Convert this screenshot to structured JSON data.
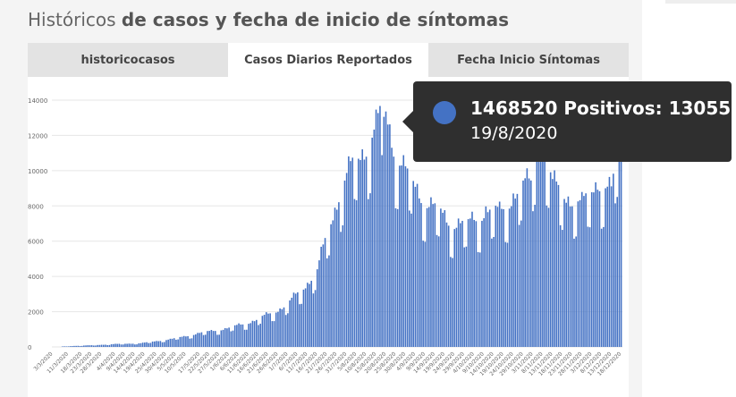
{
  "header": {
    "title_light": "Históricos ",
    "title_strong": "de casos y fecha de inicio de síntomas"
  },
  "tabs": [
    {
      "label": "historicocasos",
      "active": false
    },
    {
      "label": "Casos Diarios Reportados",
      "active": true
    },
    {
      "label": "Fecha Inicio Síntomas",
      "active": false
    }
  ],
  "tooltip": {
    "line1": "1468520 Positivos: 13055",
    "line2": "19/8/2020",
    "color": "#4472c4"
  },
  "colors": {
    "bar": "#4472c4",
    "grid": "#e6e6e6",
    "panel": "#f4f4f4",
    "tooltip_bg": "#2f2f2f"
  },
  "chart_data": {
    "type": "bar",
    "title": "",
    "xlabel": "",
    "ylabel": "",
    "ylim": [
      0,
      14000
    ],
    "yticks": [
      0,
      2000,
      4000,
      6000,
      8000,
      10000,
      12000,
      14000
    ],
    "grid": true,
    "series": [
      {
        "name": "Positivos",
        "anchors": [
          [
            "3/3/2020",
            0
          ],
          [
            "15/3/2020",
            60
          ],
          [
            "23/3/2020",
            90
          ],
          [
            "3/4/2020",
            150
          ],
          [
            "17/4/2020",
            200
          ],
          [
            "3/5/2020",
            430
          ],
          [
            "17/5/2020",
            750
          ],
          [
            "2/6/2020",
            1050
          ],
          [
            "16/6/2020",
            1500
          ],
          [
            "1/7/2020",
            2300
          ],
          [
            "11/7/2020",
            3500
          ],
          [
            "16/7/2020",
            4100
          ],
          [
            "22/7/2020",
            6500
          ],
          [
            "27/7/2020",
            8300
          ],
          [
            "3/8/2020",
            9800
          ],
          [
            "10/8/2020",
            11000
          ],
          [
            "15/8/2020",
            11800
          ],
          [
            "19/8/2020",
            13055
          ],
          [
            "25/8/2020",
            10600
          ],
          [
            "1/9/2020",
            9000
          ],
          [
            "10/9/2020",
            7900
          ],
          [
            "20/9/2020",
            6900
          ],
          [
            "1/10/2020",
            6600
          ],
          [
            "10/10/2020",
            7500
          ],
          [
            "17/10/2020",
            7200
          ],
          [
            "24/10/2020",
            8300
          ],
          [
            "2/11/2020",
            8900
          ],
          [
            "6/11/2020",
            12000
          ],
          [
            "13/11/2020",
            8700
          ],
          [
            "21/11/2020",
            8200
          ],
          [
            "28/11/2020",
            7600
          ],
          [
            "6/12/2020",
            9100
          ],
          [
            "13/12/2020",
            8300
          ],
          [
            "18/12/2020",
            11500
          ]
        ]
      }
    ],
    "xticks": [
      "3/3/2020",
      "11/3/2020",
      "18/3/2020",
      "23/3/2020",
      "28/3/2020",
      "4/4/2020",
      "9/4/2020",
      "14/4/2020",
      "19/4/2020",
      "25/4/2020",
      "30/4/2020",
      "5/5/2020",
      "10/5/2020",
      "17/5/2020",
      "22/5/2020",
      "27/5/2020",
      "1/6/2020",
      "6/6/2020",
      "11/6/2020",
      "16/6/2020",
      "21/6/2020",
      "26/6/2020",
      "1/7/2020",
      "6/7/2020",
      "11/7/2020",
      "16/7/2020",
      "21/7/2020",
      "26/7/2020",
      "31/7/2020",
      "5/8/2020",
      "10/8/2020",
      "15/8/2020",
      "20/8/2020",
      "25/8/2020",
      "30/8/2020",
      "4/9/2020",
      "9/9/2020",
      "14/9/2020",
      "19/9/2020",
      "24/9/2020",
      "29/9/2020",
      "4/10/2020",
      "9/10/2020",
      "14/10/2020",
      "19/10/2020",
      "24/10/2020",
      "29/10/2020",
      "3/11/2020",
      "8/11/2020",
      "13/11/2020",
      "18/11/2020",
      "23/11/2020",
      "28/11/2020",
      "3/12/2020",
      "8/12/2020",
      "13/12/2020",
      "18/12/2020"
    ],
    "x_start": "3/3/2020",
    "x_end": "18/12/2020"
  }
}
